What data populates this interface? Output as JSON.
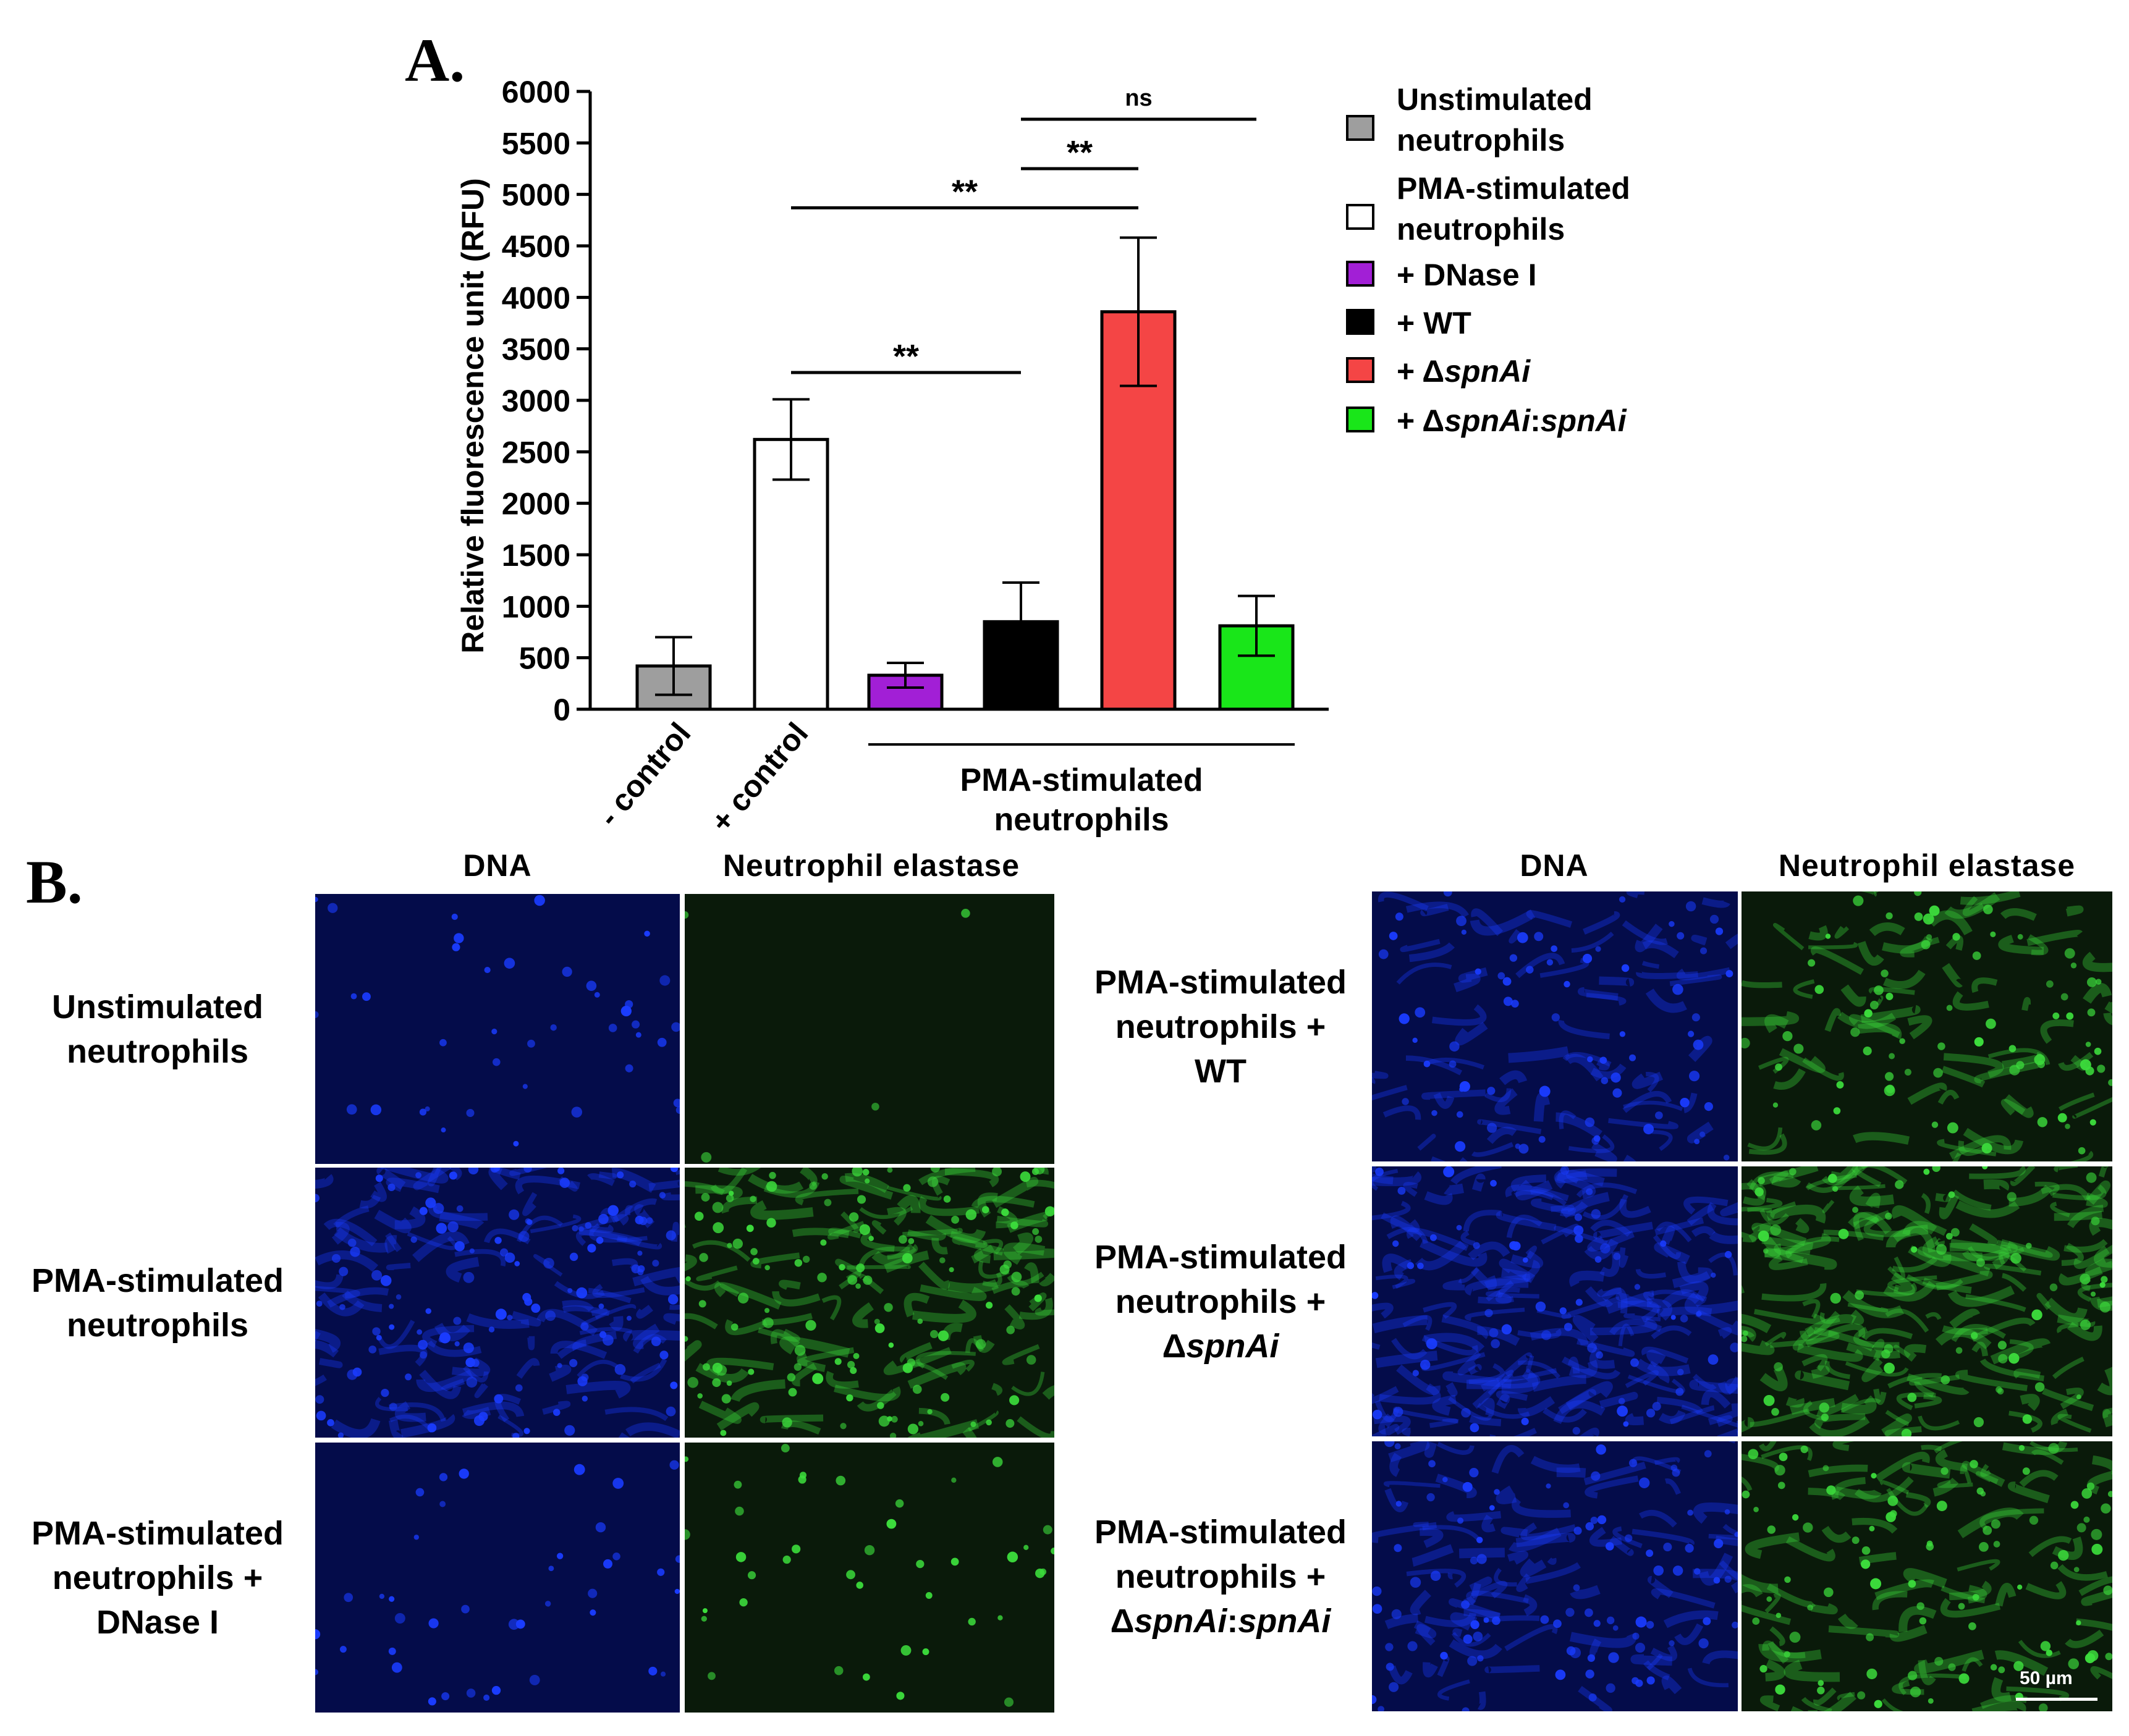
{
  "panel_a": {
    "letter": "A."
  },
  "panel_b": {
    "letter": "B."
  },
  "chart_data": {
    "type": "bar",
    "ylabel": "Relative fluorescence unit (RFU)",
    "ylim": [
      0,
      6000
    ],
    "yticks": [
      0,
      500,
      1000,
      1500,
      2000,
      2500,
      3000,
      3500,
      4000,
      4500,
      5000,
      5500,
      6000
    ],
    "categories": [
      "- control",
      "+ control",
      "",
      "",
      "",
      ""
    ],
    "group_label": "PMA-stimulated\nneutrophils",
    "bars": [
      {
        "legend": "Unstimulated neutrophils",
        "value": 420,
        "error": 280,
        "color": "#9e9e9e"
      },
      {
        "legend": "PMA-stimulated neutrophils",
        "value": 2620,
        "error": 390,
        "color": "#ffffff"
      },
      {
        "legend": "+ DNase I",
        "value": 330,
        "error": 120,
        "color": "#a21fd6"
      },
      {
        "legend": "+ WT",
        "value": 850,
        "error": 380,
        "color": "#000000"
      },
      {
        "legend": "+ ΔspnAi",
        "value": 3860,
        "error": 720,
        "color": "#f44545"
      },
      {
        "legend": "+ ΔspnAi:spnAi",
        "value": 810,
        "error": 290,
        "color": "#19e619"
      }
    ],
    "significance": [
      {
        "from": 1,
        "to": 3,
        "label": "**",
        "y": 3270
      },
      {
        "from": 1,
        "to": 4,
        "label": "**",
        "y": 4870
      },
      {
        "from": 3,
        "to": 4,
        "label": "**",
        "y": 5250
      },
      {
        "from": 3,
        "to": 5,
        "label": "ns",
        "y": 5730
      }
    ],
    "legend": [
      {
        "lines": [
          "Unstimulated",
          "neutrophils"
        ],
        "color": "#9e9e9e"
      },
      {
        "lines": [
          "PMA-stimulated",
          "neutrophils"
        ],
        "color": "#ffffff"
      },
      {
        "lines": [
          "+ DNase I"
        ],
        "color": "#a21fd6"
      },
      {
        "lines": [
          "+ WT"
        ],
        "color": "#000000"
      },
      {
        "lines": [
          "+ ΔspnAi"
        ],
        "color": "#f44545"
      },
      {
        "lines": [
          "+ ΔspnAi:spnAi"
        ],
        "color": "#19e619"
      }
    ]
  },
  "microscopy": {
    "columns": {
      "left": [
        "DNA",
        "Neutrophil elastase"
      ],
      "right": [
        "DNA",
        "Neutrophil elastase"
      ]
    },
    "left_rows": [
      [
        "Unstimulated",
        "neutrophils"
      ],
      [
        "PMA-stimulated",
        "neutrophils"
      ],
      [
        "PMA-stimulated",
        "neutrophils +",
        "DNase I"
      ]
    ],
    "right_rows": [
      [
        "PMA-stimulated",
        "neutrophils +",
        "WT"
      ],
      [
        "PMA-stimulated",
        "neutrophils +",
        "ΔspnAi"
      ],
      [
        "PMA-stimulated",
        "neutrophils +",
        "ΔspnAi:spnAi"
      ]
    ],
    "scale_bar": "50 µm",
    "colors": {
      "dna": "#1a3cff",
      "elastase": "#3cdc3c"
    }
  }
}
